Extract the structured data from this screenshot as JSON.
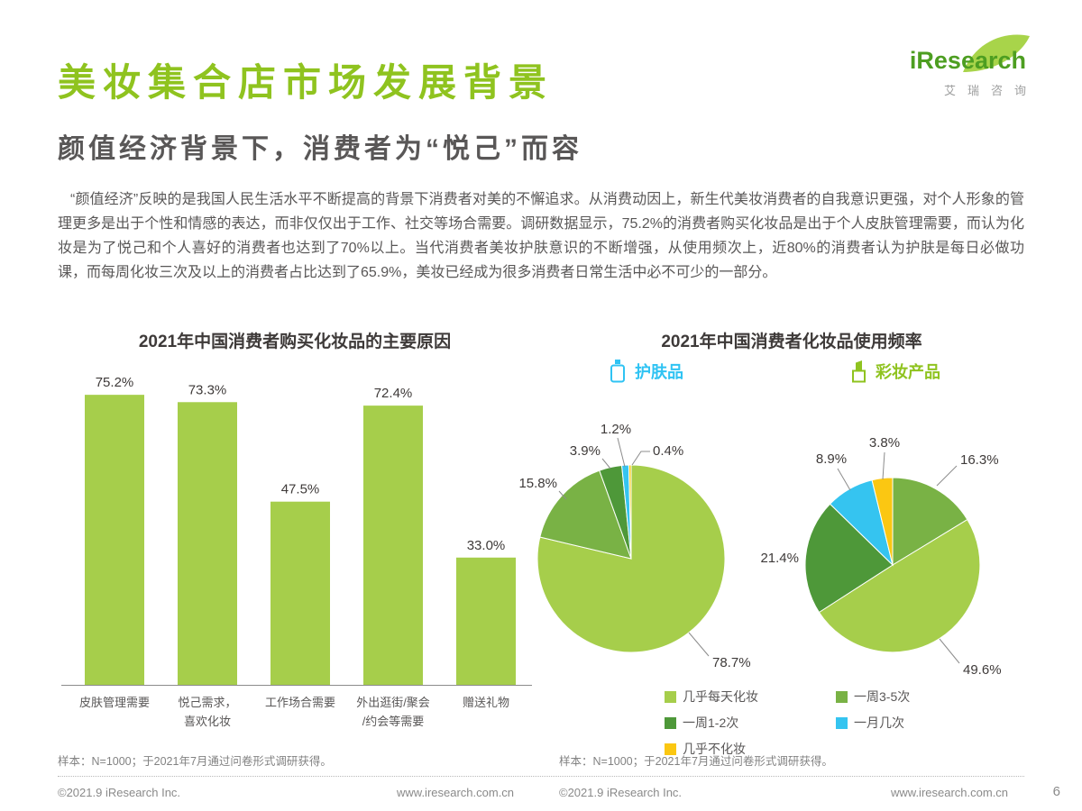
{
  "header": {
    "title": "美妆集合店市场发展背景",
    "logo": {
      "brand": "iResearch",
      "brand_cn": "艾瑞咨询"
    }
  },
  "subtitle": "颜值经济背景下，消费者为“悦己”而容",
  "intro": "“颜值经济”反映的是我国人民生活水平不断提高的背景下消费者对美的不懈追求。从消费动因上，新生代美妆消费者的自我意识更强，对个人形象的管理更多是出于个性和情感的表达，而非仅仅出于工作、社交等场合需要。调研数据显示，75.2%的消费者购买化妆品是出于个人皮肤管理需要，而认为化妆是为了悦己和个人喜好的消费者也达到了70%以上。当代消费者美妆护肤意识的不断增强，从使用频次上，近80%的消费者认为护肤是每日必做功课，而每周化妆三次及以上的消费者占比达到了65.9%，美妆已经成为很多消费者日常生活中必不可少的一部分。",
  "legend": {
    "items": [
      {
        "label": "几乎每天化妆",
        "color": "#a6ce4b"
      },
      {
        "label": "一周3-5次",
        "color": "#79b245"
      },
      {
        "label": "一周1-2次",
        "color": "#4e9839"
      },
      {
        "label": "一月几次",
        "color": "#35c4f0"
      },
      {
        "label": "几乎不化妆",
        "color": "#fbc712"
      }
    ]
  },
  "footer": {
    "copyright": "©2021.9 iResearch Inc.",
    "website": "www.iresearch.com.cn",
    "page_number": "6"
  },
  "palette": {
    "brand_green": "#8fc31f",
    "light_green": "#a6ce4b",
    "mid_green": "#79b245",
    "dark_green": "#4e9839",
    "cyan": "#35c4f0",
    "yellow": "#fbc712"
  },
  "chart_data": [
    {
      "type": "bar",
      "title": "2021年中国消费者购买化妆品的主要原因",
      "categories": [
        "皮肤管理需要",
        "悦己需求，\n喜欢化妆",
        "工作场合需要",
        "外出逛街/聚会\n/约会等需要",
        "赠送礼物"
      ],
      "values": [
        75.2,
        73.3,
        47.5,
        72.4,
        33.0
      ],
      "unit": "%",
      "ylim": [
        0,
        80
      ],
      "grid": false,
      "bar_color": "#a6ce4b",
      "note": "样本：N=1000；于2021年7月通过问卷形式调研获得。"
    },
    {
      "type": "pie",
      "name": "护肤品",
      "title": "2021年中国消费者化妆品使用频率",
      "start_angle_deg": 0,
      "direction": "clockwise",
      "legend_position": "bottom",
      "slices": [
        {
          "label": "几乎每天化妆",
          "value": 78.7,
          "color": "#a6ce4b"
        },
        {
          "label": "一周3-5次",
          "value": 15.8,
          "color": "#79b245"
        },
        {
          "label": "一周1-2次",
          "value": 3.9,
          "color": "#4e9839"
        },
        {
          "label": "一月几次",
          "value": 1.2,
          "color": "#35c4f0"
        },
        {
          "label": "几乎不化妆",
          "value": 0.4,
          "color": "#fbc712"
        }
      ],
      "note": "样本：N=1000；于2021年7月通过问卷形式调研获得。"
    },
    {
      "type": "pie",
      "name": "彩妆产品",
      "title": "2021年中国消费者化妆品使用频率",
      "start_angle_deg": 0,
      "direction": "clockwise",
      "legend_position": "bottom",
      "slices": [
        {
          "label": "一周3-5次",
          "value": 16.3,
          "color": "#79b245"
        },
        {
          "label": "几乎每天化妆",
          "value": 49.6,
          "color": "#a6ce4b"
        },
        {
          "label": "一周1-2次",
          "value": 21.4,
          "color": "#4e9839"
        },
        {
          "label": "一月几次",
          "value": 8.9,
          "color": "#35c4f0"
        },
        {
          "label": "几乎不化妆",
          "value": 3.8,
          "color": "#fbc712"
        }
      ]
    }
  ]
}
